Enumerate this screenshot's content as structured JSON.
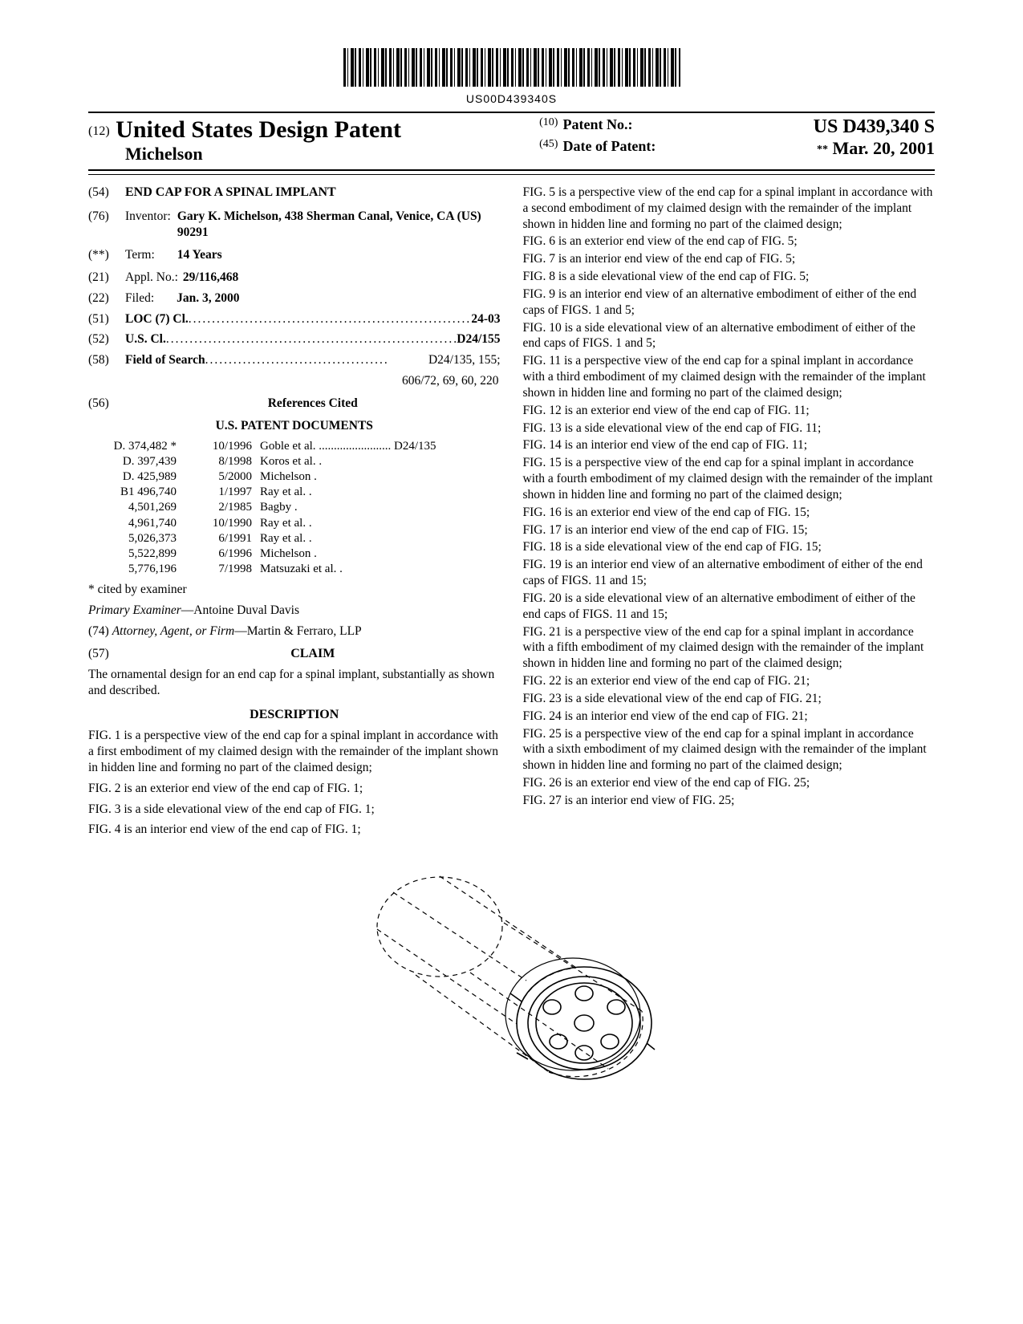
{
  "barcode_text": "US00D439340S",
  "header": {
    "code12": "(12)",
    "country": "United States Design Patent",
    "inventor_surname": "Michelson",
    "code10": "(10)",
    "patno_label": "Patent No.:",
    "patno": "US D439,340 S",
    "code45": "(45)",
    "date_label": "Date of Patent:",
    "date_stars": "**",
    "date": "Mar. 20, 2001"
  },
  "left": {
    "title_code": "(54)",
    "title": "END CAP FOR A SPINAL IMPLANT",
    "inventor_code": "(76)",
    "inventor_label": "Inventor:",
    "inventor_value": "Gary K. Michelson, 438 Sherman Canal, Venice, CA (US) 90291",
    "term_code": "(**)",
    "term_label": "Term:",
    "term_value": "14 Years",
    "appl_code": "(21)",
    "appl_label": "Appl. No.:",
    "appl_value": "29/116,468",
    "filed_code": "(22)",
    "filed_label": "Filed:",
    "filed_value": "Jan. 3, 2000",
    "loc_code": "(51)",
    "loc_label": "LOC (7) Cl.",
    "loc_value": "24-03",
    "uscl_code": "(52)",
    "uscl_label": "U.S. Cl.",
    "uscl_value": "D24/155",
    "fos_code": "(58)",
    "fos_label": "Field of Search",
    "fos_value": "D24/135, 155;",
    "fos_value2": "606/72, 69, 60, 220",
    "refs_code": "(56)",
    "refs_label": "References Cited",
    "refs_sub": "U.S. PATENT DOCUMENTS",
    "refs": [
      {
        "n": "D. 374,482",
        "star": "*",
        "d": "10/1996",
        "a": "Goble et al. ........................ D24/135"
      },
      {
        "n": "D. 397,439",
        "star": "",
        "d": "8/1998",
        "a": "Koros et al. ."
      },
      {
        "n": "D. 425,989",
        "star": "",
        "d": "5/2000",
        "a": "Michelson ."
      },
      {
        "n": "B1 496,740",
        "star": "",
        "d": "1/1997",
        "a": "Ray et al. ."
      },
      {
        "n": "4,501,269",
        "star": "",
        "d": "2/1985",
        "a": "Bagby ."
      },
      {
        "n": "4,961,740",
        "star": "",
        "d": "10/1990",
        "a": "Ray et al. ."
      },
      {
        "n": "5,026,373",
        "star": "",
        "d": "6/1991",
        "a": "Ray et al. ."
      },
      {
        "n": "5,522,899",
        "star": "",
        "d": "6/1996",
        "a": "Michelson ."
      },
      {
        "n": "5,776,196",
        "star": "",
        "d": "7/1998",
        "a": "Matsuzaki et al. ."
      }
    ],
    "cited_note": "* cited by examiner",
    "examiner_label": "Primary Examiner",
    "examiner_value": "—Antoine Duval Davis",
    "attorney_code": "(74)",
    "attorney_label": "Attorney, Agent, or Firm",
    "attorney_value": "—Martin & Ferraro, LLP",
    "claim_code": "(57)",
    "claim_label": "CLAIM",
    "claim_text": "The ornamental design for an end cap for a spinal implant, substantially as shown and described.",
    "desc_label": "DESCRIPTION",
    "desc_p1": "FIG. 1 is a perspective view of the end cap for a spinal implant in accordance with a first embodiment of my claimed design with the remainder of the implant shown in hidden line and forming no part of the claimed design;",
    "desc_p2": "FIG. 2 is an exterior end view of the end cap of FIG. 1;",
    "desc_p3": "FIG. 3 is a side elevational view of the end cap of FIG. 1;",
    "desc_p4": "FIG. 4 is an interior end view of the end cap of FIG. 1;"
  },
  "right": {
    "p": [
      "FIG. 5 is a perspective view of the end cap for a spinal implant in accordance with a second embodiment of my claimed design with the remainder of the implant shown in hidden line and forming no part of the claimed design;",
      "FIG. 6 is an exterior end view of the end cap of FIG. 5;",
      "FIG. 7 is an interior end view of the end cap of FIG. 5;",
      "FIG. 8 is a side elevational view of the end cap of FIG. 5;",
      "FIG. 9 is an interior end view of an alternative embodiment of either of the end caps of FIGS. 1 and 5;",
      "FIG. 10 is a side elevational view of an alternative embodiment of either of the end caps of FIGS. 1 and 5;",
      "FIG. 11 is a perspective view of the end cap for a spinal implant in accordance with a third embodiment of my claimed design with the remainder of the implant shown in hidden line and forming no part of the claimed design;",
      "FIG. 12 is an exterior end view of the end cap of FIG. 11;",
      "FIG. 13 is a side elevational view of the end cap of FIG. 11;",
      "FIG. 14 is an interior end view of the end cap of FIG. 11;",
      "FIG. 15 is a perspective view of the end cap for a spinal implant in accordance with a fourth embodiment of my claimed design with the remainder of the implant shown in hidden line and forming no part of the claimed design;",
      "FIG. 16 is an exterior end view of the end cap of FIG. 15;",
      "FIG. 17 is an interior end view of the end cap of FIG. 15;",
      "FIG. 18 is a side elevational view of the end cap of FIG. 15;",
      "FIG. 19 is an interior end view of an alternative embodiment of either of the end caps of FIGS. 11 and 15;",
      "FIG. 20 is a side elevational view of an alternative embodiment of either of the end caps of FIGS. 11 and 15;",
      "FIG. 21 is a perspective view of the end cap for a spinal implant in accordance with a fifth embodiment of my claimed design with the remainder of the implant shown in hidden line and forming no part of the claimed design;",
      "FIG. 22 is an exterior end view of the end cap of FIG. 21;",
      "FIG. 23 is a side elevational view of the end cap of FIG. 21;",
      "FIG. 24 is an interior end view of the end cap of FIG. 21;",
      "FIG. 25 is a perspective view of the end cap for a spinal implant in accordance with a sixth embodiment of my claimed design with the remainder of the implant shown in hidden line and forming no part of the claimed design;",
      "FIG. 26 is an exterior end view of the end cap of FIG. 25;",
      "FIG. 27 is an interior end view of FIG. 25;"
    ]
  }
}
